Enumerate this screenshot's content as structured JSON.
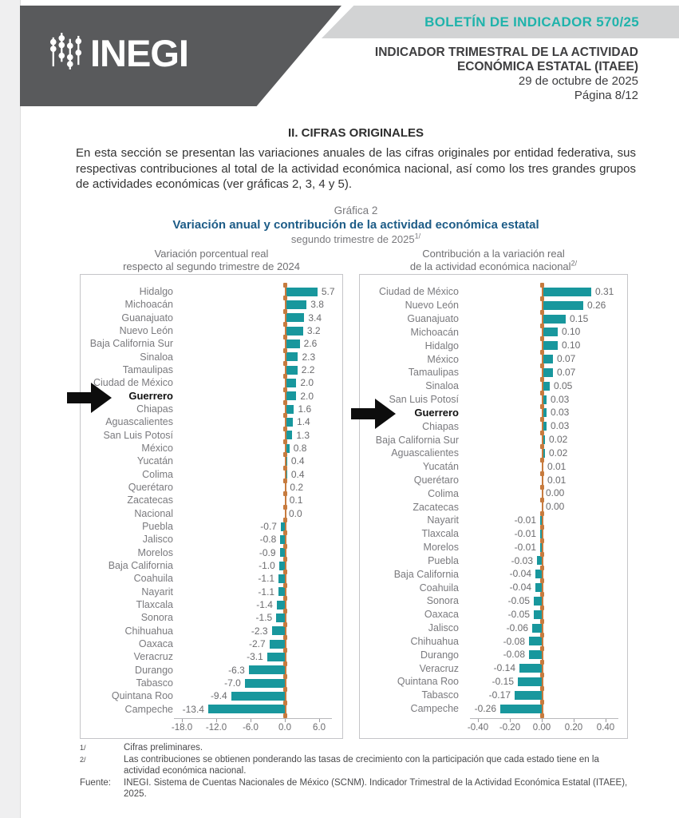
{
  "header": {
    "logo_text": "INEGI",
    "bulletin": "BOLETÍN DE INDICADOR 570/25",
    "title_line1": "INDICADOR TRIMESTRAL DE LA ACTIVIDAD",
    "title_line2": "ECONÓMICA ESTATAL (ITAEE)",
    "date": "29 de octubre de 2025",
    "page_label": "Página 8/12"
  },
  "section": {
    "heading": "II. CIFRAS ORIGINALES",
    "paragraph": "En esta sección se presentan las variaciones anuales de las cifras originales por entidad federativa, sus respectivas contribuciones al total de la actividad económica nacional, así como los tres grandes grupos de actividades económicas (ver gráficas 2, 3, 4 y 5)."
  },
  "figure": {
    "label": "Gráfica 2",
    "title": "Variación anual y contribución de la actividad económica estatal",
    "subtitle": "segundo trimestre de 2025",
    "subtitle_sup": "1/"
  },
  "colors": {
    "accent_teal": "#1FB3AB",
    "bar_teal": "#18979D",
    "axis_orange": "#C77B3E",
    "title_blue": "#1D5C87"
  },
  "chart_data": [
    {
      "type": "bar",
      "orientation": "horizontal",
      "col_title_line1": "Variación porcentual real",
      "col_title_line2": "respecto al segundo trimestre de 2024",
      "col_title_sup": "",
      "highlight": "Guerrero",
      "xlim": [
        -18,
        6
      ],
      "xticks": [
        -18,
        -12,
        -6,
        0,
        6
      ],
      "xtick_labels": [
        "-18.0",
        "-12.0",
        "-6.0",
        "0.0",
        "6.0"
      ],
      "categories": [
        "Hidalgo",
        "Michoacán",
        "Guanajuato",
        "Nuevo León",
        "Baja California Sur",
        "Sinaloa",
        "Tamaulipas",
        "Ciudad de México",
        "Guerrero",
        "Chiapas",
        "Aguascalientes",
        "San Luis Potosí",
        "México",
        "Yucatán",
        "Colima",
        "Querétaro",
        "Zacatecas",
        "Nacional",
        "Puebla",
        "Jalisco",
        "Morelos",
        "Baja California",
        "Coahuila",
        "Nayarit",
        "Tlaxcala",
        "Sonora",
        "Chihuahua",
        "Oaxaca",
        "Veracruz",
        "Durango",
        "Tabasco",
        "Quintana Roo",
        "Campeche"
      ],
      "values": [
        5.7,
        3.8,
        3.4,
        3.2,
        2.6,
        2.3,
        2.2,
        2.0,
        2.0,
        1.6,
        1.4,
        1.3,
        0.8,
        0.4,
        0.4,
        0.2,
        0.1,
        0.0,
        -0.7,
        -0.8,
        -0.9,
        -1.0,
        -1.1,
        -1.1,
        -1.4,
        -1.5,
        -2.3,
        -2.7,
        -3.1,
        -6.3,
        -7.0,
        -9.4,
        -13.4
      ]
    },
    {
      "type": "bar",
      "orientation": "horizontal",
      "col_title_line1": "Contribución a la variación real",
      "col_title_line2": "de la actividad económica nacional",
      "col_title_sup": "2/",
      "highlight": "Guerrero",
      "xlim": [
        -0.4,
        0.4
      ],
      "xticks": [
        -0.4,
        -0.2,
        0,
        0.2,
        0.4
      ],
      "xtick_labels": [
        "-0.40",
        "-0.20",
        "0.00",
        "0.20",
        "0.40"
      ],
      "categories": [
        "Ciudad de México",
        "Nuevo León",
        "Guanajuato",
        "Michoacán",
        "Hidalgo",
        "México",
        "Tamaulipas",
        "Sinaloa",
        "San Luis Potosí",
        "Guerrero",
        "Chiapas",
        "Baja California Sur",
        "Aguascalientes",
        "Yucatán",
        "Querétaro",
        "Colima",
        "Zacatecas",
        "Nayarit",
        "Tlaxcala",
        "Morelos",
        "Puebla",
        "Baja California",
        "Coahuila",
        "Sonora",
        "Oaxaca",
        "Jalisco",
        "Chihuahua",
        "Durango",
        "Veracruz",
        "Quintana Roo",
        "Tabasco",
        "Campeche"
      ],
      "values": [
        0.31,
        0.26,
        0.15,
        0.1,
        0.1,
        0.07,
        0.07,
        0.05,
        0.03,
        0.03,
        0.03,
        0.02,
        0.02,
        0.01,
        0.01,
        0.0,
        0.0,
        -0.01,
        -0.01,
        -0.01,
        -0.03,
        -0.04,
        -0.04,
        -0.05,
        -0.05,
        -0.06,
        -0.08,
        -0.08,
        -0.14,
        -0.15,
        -0.17,
        -0.26
      ]
    }
  ],
  "footnotes": {
    "items": [
      {
        "marker": "1/",
        "text": "Cifras preliminares."
      },
      {
        "marker": "2/",
        "text": "Las contribuciones se obtienen ponderando las tasas de crecimiento con la participación que cada estado tiene en la actividad económica nacional."
      }
    ],
    "source_label": "Fuente:",
    "source_text": "INEGI. Sistema de Cuentas Nacionales de México (SCNM). Indicador Trimestral de la Actividad Económica Estatal (ITAEE), 2025."
  }
}
